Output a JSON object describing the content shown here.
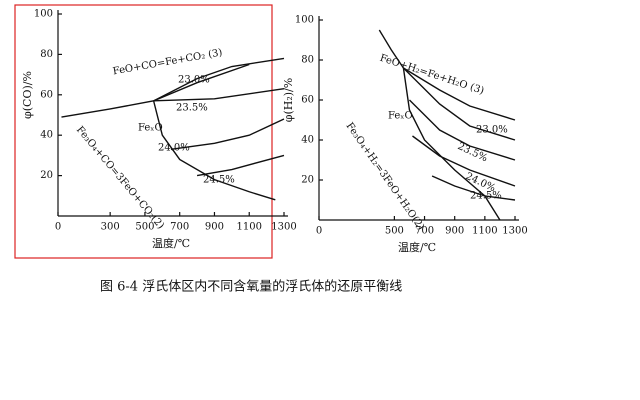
{
  "chart_data": [
    {
      "type": "line",
      "xlabel": "温度/℃",
      "ylabel": "φ(CO)/%",
      "xlim": [
        0,
        1300
      ],
      "ylim": [
        0,
        100
      ],
      "xticks": [
        0,
        300,
        500,
        700,
        900,
        1100,
        1300
      ],
      "yticks": [
        20,
        40,
        60,
        80,
        100
      ],
      "annotation": "FeₓO",
      "series": [
        {
          "name": "FeO+CO=Fe+CO₂ (3)",
          "color": "#111",
          "x": [
            20,
            300,
            550,
            800,
            1000,
            1300
          ],
          "values": [
            49,
            53,
            57,
            68,
            74,
            78
          ]
        },
        {
          "name": "23.0%",
          "color": "#111",
          "x": [
            550,
            800,
            1100
          ],
          "values": [
            57,
            66,
            75
          ]
        },
        {
          "name": "23.5%",
          "color": "#111",
          "x": [
            550,
            900,
            1300
          ],
          "values": [
            57,
            58,
            63
          ]
        },
        {
          "name": "Fe₃O₄+CO=3FeO+CO₂(2)",
          "color": "#111",
          "x": [
            550,
            600,
            700,
            900,
            1100,
            1250
          ],
          "values": [
            57,
            40,
            28,
            18,
            12,
            8
          ]
        },
        {
          "name": "24.0%",
          "color": "#111",
          "x": [
            650,
            900,
            1100,
            1300
          ],
          "values": [
            33,
            36,
            40,
            48
          ]
        },
        {
          "name": "24.5%",
          "color": "#111",
          "x": [
            800,
            1000,
            1300
          ],
          "values": [
            20,
            23,
            30
          ]
        }
      ]
    },
    {
      "type": "line",
      "xlabel": "温度/℃",
      "ylabel": "φ(H₂)/%",
      "xlim": [
        0,
        1300
      ],
      "ylim": [
        0,
        100
      ],
      "xticks": [
        0,
        500,
        700,
        900,
        1100,
        1300
      ],
      "yticks": [
        20,
        40,
        60,
        80,
        100
      ],
      "annotation": "FeₓO",
      "series": [
        {
          "name": "FeO+H₂=Fe+H₂O (3)",
          "color": "#111",
          "x": [
            560,
            800,
            1000,
            1300
          ],
          "values": [
            76,
            65,
            57,
            50
          ]
        },
        {
          "name": "23.0%",
          "color": "#111",
          "x": [
            560,
            800,
            1000,
            1300
          ],
          "values": [
            76,
            58,
            47,
            40
          ]
        },
        {
          "name": "23.5%",
          "color": "#111",
          "x": [
            600,
            800,
            1000,
            1300
          ],
          "values": [
            60,
            45,
            37,
            30
          ]
        },
        {
          "name": "24.0%",
          "color": "#111",
          "x": [
            620,
            800,
            1000,
            1300
          ],
          "values": [
            42,
            32,
            25,
            17
          ]
        },
        {
          "name": "24.5%",
          "color": "#111",
          "x": [
            750,
            900,
            1100,
            1300
          ],
          "values": [
            22,
            17,
            12,
            10
          ]
        },
        {
          "name": "Fe₃O₄+H₂=3FeO+H₂O(2)",
          "color": "#111",
          "x": [
            400,
            480,
            560,
            600,
            700,
            900,
            1100,
            1200
          ],
          "values": [
            95,
            85,
            76,
            55,
            40,
            25,
            12,
            0
          ]
        }
      ]
    }
  ],
  "caption": "图 6-4   浮氏体区内不同含氧量的浮氏体的还原平衡线"
}
